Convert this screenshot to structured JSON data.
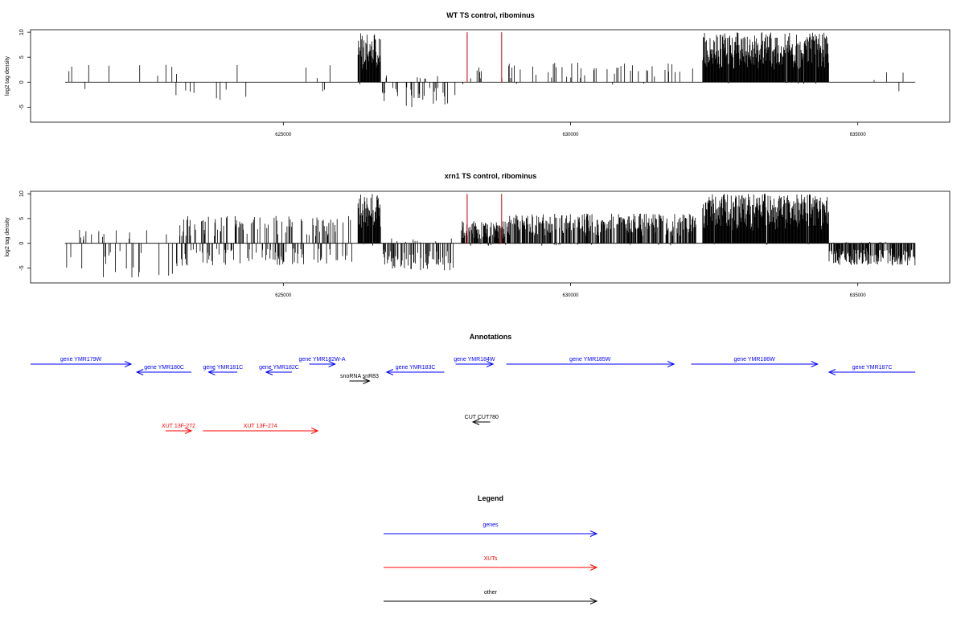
{
  "tracks": [
    {
      "title": "WT TS control, ribominus",
      "ylabel": "log2 tag density",
      "ylim": [
        -8,
        10.5
      ],
      "yticks": [
        -5,
        0,
        5,
        10
      ],
      "xlim": [
        620600,
        636600
      ],
      "xticks": [
        625000,
        630000,
        635000
      ],
      "baseline_range": [
        621200,
        636000
      ],
      "red_lines": [
        628200,
        628800
      ],
      "regions": [
        {
          "from": 621100,
          "to": 626200,
          "density": 0.018,
          "pos_max": 3.5,
          "neg_max": 4.0,
          "seed": 11
        },
        {
          "from": 626300,
          "to": 626700,
          "density": 0.45,
          "pos_max": 10,
          "neg_max": 0.5,
          "seed": 12
        },
        {
          "from": 626700,
          "to": 628000,
          "density": 0.08,
          "pos_max": 1.5,
          "neg_max": 5.0,
          "seed": 13
        },
        {
          "from": 628100,
          "to": 628900,
          "density": 0.05,
          "pos_max": 3.0,
          "neg_max": 0.5,
          "seed": 14
        },
        {
          "from": 628900,
          "to": 632200,
          "density": 0.045,
          "pos_max": 4.0,
          "neg_max": 0.5,
          "seed": 15
        },
        {
          "from": 632300,
          "to": 634500,
          "density": 0.5,
          "pos_max": 10,
          "neg_max": 0.3,
          "seed": 16
        },
        {
          "from": 634500,
          "to": 636000,
          "density": 0.012,
          "pos_max": 2.0,
          "neg_max": 3.0,
          "seed": 17
        }
      ]
    },
    {
      "title": "xrn1 TS control, ribominus",
      "ylabel": "log2 tag density",
      "ylim": [
        -8,
        10.5
      ],
      "yticks": [
        -5,
        0,
        5,
        10
      ],
      "xlim": [
        620600,
        636600
      ],
      "xticks": [
        625000,
        630000,
        635000
      ],
      "baseline_range": [
        621200,
        636000
      ],
      "red_lines": [
        628200,
        628800
      ],
      "regions": [
        {
          "from": 621100,
          "to": 623200,
          "density": 0.07,
          "pos_max": 3.0,
          "neg_max": 7.0,
          "seed": 21
        },
        {
          "from": 623200,
          "to": 626200,
          "density": 0.2,
          "pos_max": 5.5,
          "neg_max": 4.5,
          "seed": 22
        },
        {
          "from": 626300,
          "to": 626700,
          "density": 0.45,
          "pos_max": 10,
          "neg_max": 0.5,
          "seed": 23
        },
        {
          "from": 626700,
          "to": 628000,
          "density": 0.2,
          "pos_max": 1.0,
          "neg_max": 5.5,
          "seed": 24
        },
        {
          "from": 628100,
          "to": 628900,
          "density": 0.35,
          "pos_max": 4.5,
          "neg_max": 0.5,
          "seed": 25
        },
        {
          "from": 628900,
          "to": 632200,
          "density": 0.3,
          "pos_max": 6.0,
          "neg_max": 0.5,
          "seed": 26
        },
        {
          "from": 632300,
          "to": 634500,
          "density": 0.5,
          "pos_max": 10,
          "neg_max": 0.3,
          "seed": 27
        },
        {
          "from": 634500,
          "to": 636000,
          "density": 0.35,
          "pos_max": 0.3,
          "neg_max": 4.5,
          "seed": 28
        }
      ]
    }
  ],
  "annotations": {
    "title": "Annotations",
    "features": [
      {
        "label": "gene YMR179W",
        "type": "gene",
        "strand": "+",
        "start": 620600,
        "end": 622350,
        "row": 0
      },
      {
        "label": "gene YMR180C",
        "type": "gene",
        "strand": "-",
        "start": 622450,
        "end": 623400,
        "row": 1
      },
      {
        "label": "gene YMR181C",
        "type": "gene",
        "strand": "-",
        "start": 623700,
        "end": 624200,
        "row": 1
      },
      {
        "label": "gene YMR182C",
        "type": "gene",
        "strand": "-",
        "start": 624700,
        "end": 625150,
        "row": 1
      },
      {
        "label": "gene YMR182W-A",
        "type": "gene",
        "strand": "+",
        "start": 625450,
        "end": 625900,
        "row": 0
      },
      {
        "label": "snoRNA snR83",
        "type": "other",
        "strand": "+",
        "start": 626150,
        "end": 626500,
        "row": 2
      },
      {
        "label": "gene YMR183C",
        "type": "gene",
        "strand": "-",
        "start": 626800,
        "end": 627800,
        "row": 1
      },
      {
        "label": "gene YMR184W",
        "type": "gene",
        "strand": "+",
        "start": 628000,
        "end": 628650,
        "row": 0
      },
      {
        "label": "gene YMR185W",
        "type": "gene",
        "strand": "+",
        "start": 628880,
        "end": 631800,
        "row": 0
      },
      {
        "label": "gene YMR186W",
        "type": "gene",
        "strand": "+",
        "start": 632100,
        "end": 634300,
        "row": 0
      },
      {
        "label": "gene YMR187C",
        "type": "gene",
        "strand": "-",
        "start": 634500,
        "end": 636000,
        "row": 1
      },
      {
        "label": "CUT CUT780",
        "type": "other",
        "strand": "-",
        "start": 628300,
        "end": 628600,
        "row": 3
      },
      {
        "label": "XUT 13F-272",
        "type": "xut",
        "strand": "+",
        "start": 622950,
        "end": 623400,
        "row": 4
      },
      {
        "label": "XUT 13F-274",
        "type": "xut",
        "strand": "+",
        "start": 623600,
        "end": 625600,
        "row": 4
      }
    ]
  },
  "legend": {
    "title": "Legend",
    "items": [
      {
        "label": "genes",
        "color": "#0000ff"
      },
      {
        "label": "XUTs",
        "color": "#ff0000"
      },
      {
        "label": "other",
        "color": "#000000"
      }
    ]
  },
  "colors": {
    "gene": "#0000ff",
    "xut": "#ff0000",
    "other": "#000000",
    "signal": "#000000",
    "marker": "#cc0000"
  },
  "chart_data": [
    {
      "type": "bar",
      "title": "WT TS control, ribominus",
      "ylabel": "log2 tag density",
      "xlabel": "",
      "ylim": [
        -8,
        10.5
      ],
      "xlim": [
        620600,
        636600
      ],
      "xticks": [
        625000,
        630000,
        635000
      ],
      "yticks": [
        -5,
        0,
        5,
        10
      ],
      "series": [
        {
          "name": "",
          "x": [
            622200,
            626400,
            626500,
            627500,
            628200,
            628800,
            630500,
            632400,
            633500,
            635600
          ],
          "values": [
            -4,
            10,
            9.5,
            -5,
            10,
            10,
            4,
            10,
            9.5,
            -2.5
          ]
        }
      ],
      "grid": false
    },
    {
      "type": "bar",
      "title": "xrn1 TS control, ribominus",
      "ylabel": "log2 tag density",
      "xlabel": "",
      "ylim": [
        -8,
        10.5
      ],
      "xlim": [
        620600,
        636600
      ],
      "xticks": [
        625000,
        630000,
        635000
      ],
      "yticks": [
        -5,
        0,
        5,
        10
      ],
      "series": [
        {
          "name": "",
          "x": [
            622200,
            625200,
            626400,
            627500,
            628200,
            628800,
            630500,
            632400,
            633500,
            635300
          ],
          "values": [
            -7,
            5.5,
            10,
            -5,
            10,
            10,
            5.5,
            10,
            9,
            -4
          ]
        }
      ],
      "grid": false
    }
  ]
}
